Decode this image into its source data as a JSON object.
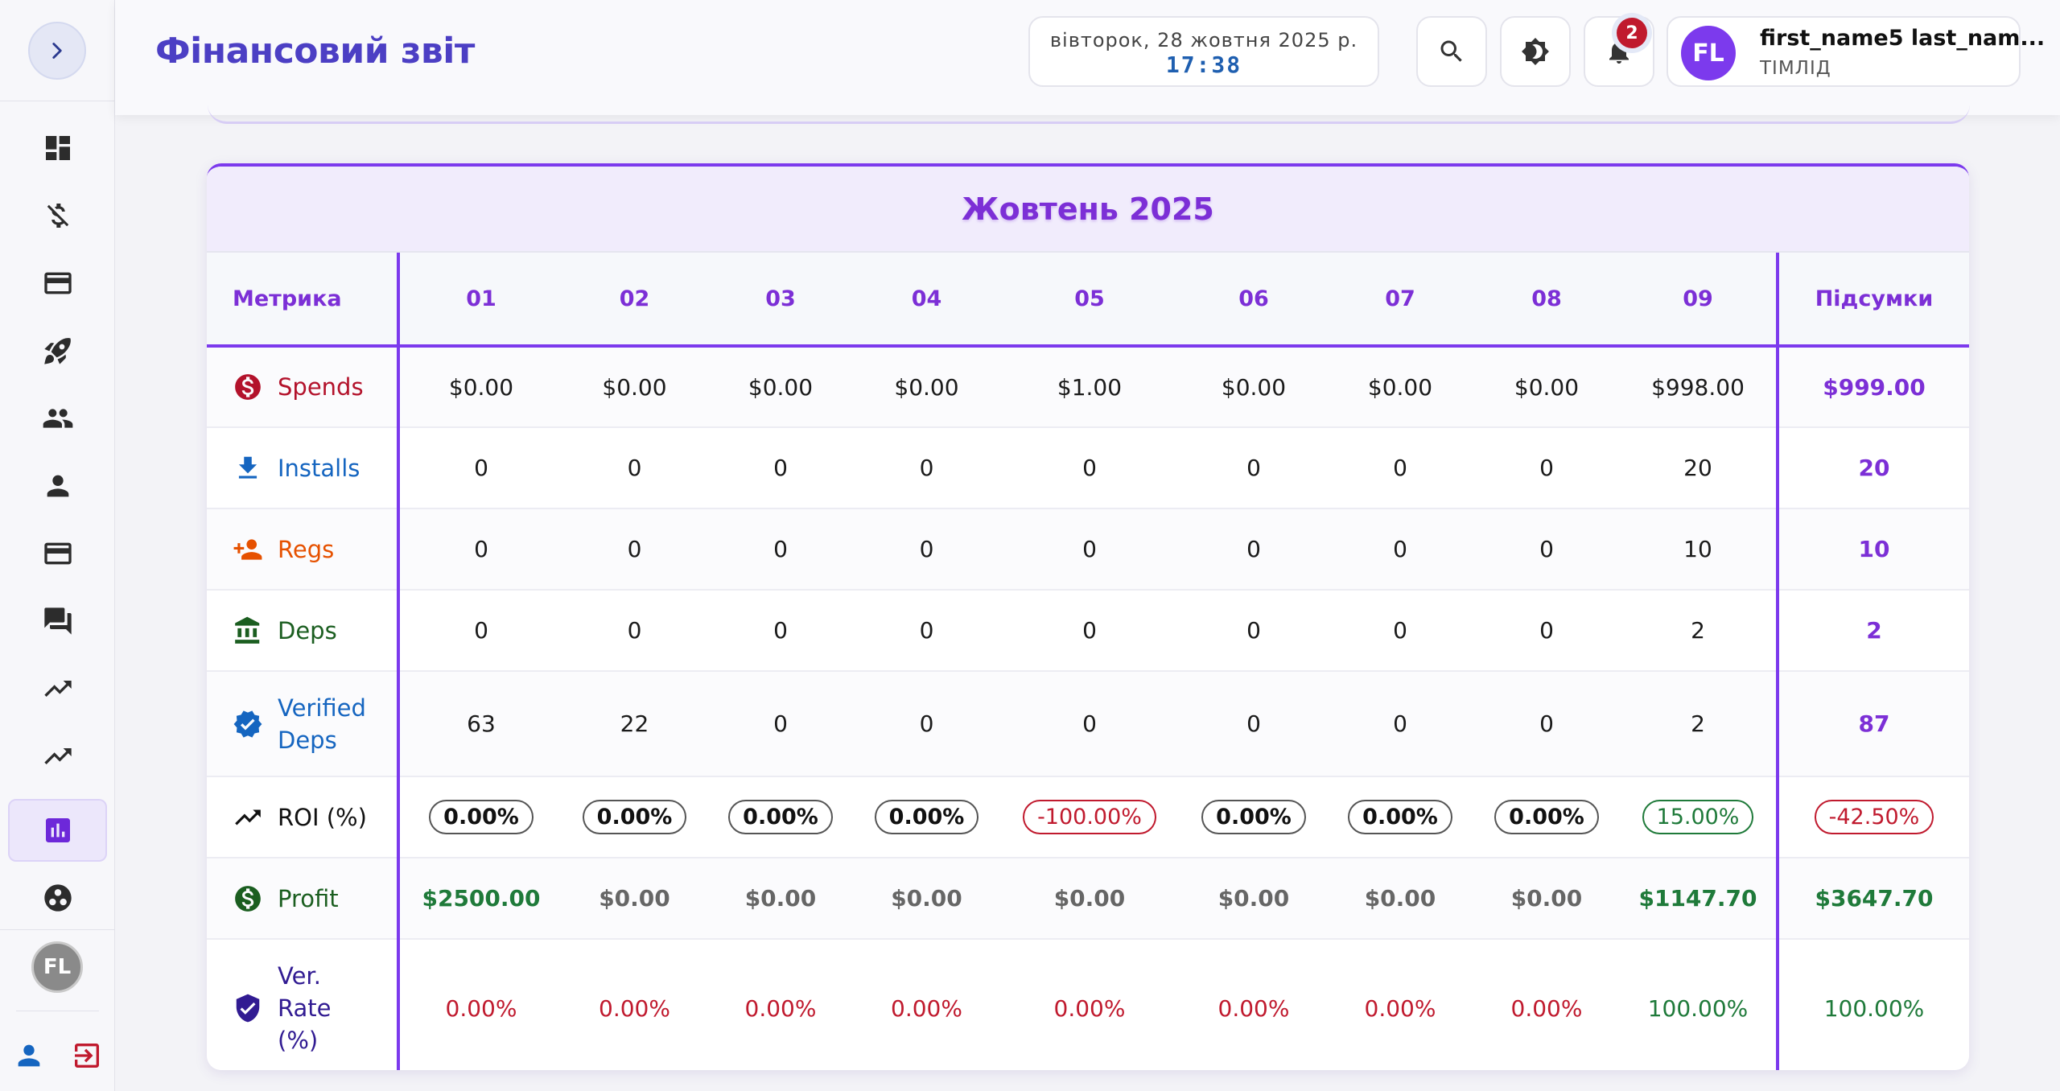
{
  "header": {
    "title": "Фінансовий звіт",
    "date": "вівторок, 28 жовтня 2025 р.",
    "time": "17:38",
    "notifications_count": "2",
    "user": {
      "initials": "FL",
      "name": "first_name5 last_nam...",
      "role": "ТІМЛІД"
    }
  },
  "sidebar": {
    "avatar_initials": "FL",
    "items": [
      "dashboard-icon",
      "money-off-icon",
      "card-icon",
      "rocket-icon",
      "group-icon",
      "person-icon",
      "card-icon",
      "chat-icon",
      "trending-up-icon",
      "trending-up-icon",
      "bar-chart-icon",
      "team-circle-icon"
    ],
    "active_item": "bar-chart-icon"
  },
  "report": {
    "title": "Жовтень 2025",
    "metric_header": "Метрика",
    "totals_header": "Підсумки",
    "days": [
      "01",
      "02",
      "03",
      "04",
      "05",
      "06",
      "07",
      "08",
      "09"
    ],
    "rows": [
      {
        "key": "spends",
        "label": "Spends",
        "color": "#b3122b",
        "icon": "dollar-circle-icon",
        "values": [
          "$0.00",
          "$0.00",
          "$0.00",
          "$0.00",
          "$1.00",
          "$0.00",
          "$0.00",
          "$0.00",
          "$998.00"
        ],
        "total": "$999.00"
      },
      {
        "key": "installs",
        "label": "Installs",
        "color": "#1565c0",
        "icon": "download-icon",
        "values": [
          "0",
          "0",
          "0",
          "0",
          "0",
          "0",
          "0",
          "0",
          "20"
        ],
        "total": "20"
      },
      {
        "key": "regs",
        "label": "Regs",
        "color": "#e65100",
        "icon": "person-add-icon",
        "values": [
          "0",
          "0",
          "0",
          "0",
          "0",
          "0",
          "0",
          "0",
          "10"
        ],
        "total": "10"
      },
      {
        "key": "deps",
        "label": "Deps",
        "color": "#1b5e20",
        "icon": "bank-icon",
        "values": [
          "0",
          "0",
          "0",
          "0",
          "0",
          "0",
          "0",
          "0",
          "2"
        ],
        "total": "2"
      },
      {
        "key": "verified",
        "label": "Verified Deps",
        "color": "#1565c0",
        "icon": "verified-icon",
        "values": [
          "63",
          "22",
          "0",
          "0",
          "0",
          "0",
          "0",
          "0",
          "2"
        ],
        "total": "87"
      },
      {
        "key": "roi",
        "label": "ROI (%)",
        "color": "#111111",
        "icon": "trending-up-icon",
        "values": [
          "0.00%",
          "0.00%",
          "0.00%",
          "0.00%",
          "-100.00%",
          "0.00%",
          "0.00%",
          "0.00%",
          "15.00%"
        ],
        "states": [
          "zero",
          "zero",
          "zero",
          "zero",
          "neg",
          "zero",
          "zero",
          "zero",
          "pos"
        ],
        "total": "-42.50%",
        "total_state": "neg"
      },
      {
        "key": "profit",
        "label": "Profit",
        "color": "#1b5e20",
        "icon": "dollar-circle-icon",
        "values": [
          "$2500.00",
          "$0.00",
          "$0.00",
          "$0.00",
          "$0.00",
          "$0.00",
          "$0.00",
          "$0.00",
          "$1147.70"
        ],
        "states": [
          "pos",
          "zero",
          "zero",
          "zero",
          "zero",
          "zero",
          "zero",
          "zero",
          "pos"
        ],
        "total": "$3647.70",
        "total_state": "pos"
      },
      {
        "key": "verrate",
        "label": "Ver. Rate (%)",
        "color": "#311b92",
        "icon": "shield-check-icon",
        "values": [
          "0.00%",
          "0.00%",
          "0.00%",
          "0.00%",
          "0.00%",
          "0.00%",
          "0.00%",
          "0.00%",
          "100.00%"
        ],
        "states": [
          "zero",
          "zero",
          "zero",
          "zero",
          "zero",
          "zero",
          "zero",
          "zero",
          "pos"
        ],
        "total": "100.00%",
        "total_state": "pos"
      }
    ]
  }
}
